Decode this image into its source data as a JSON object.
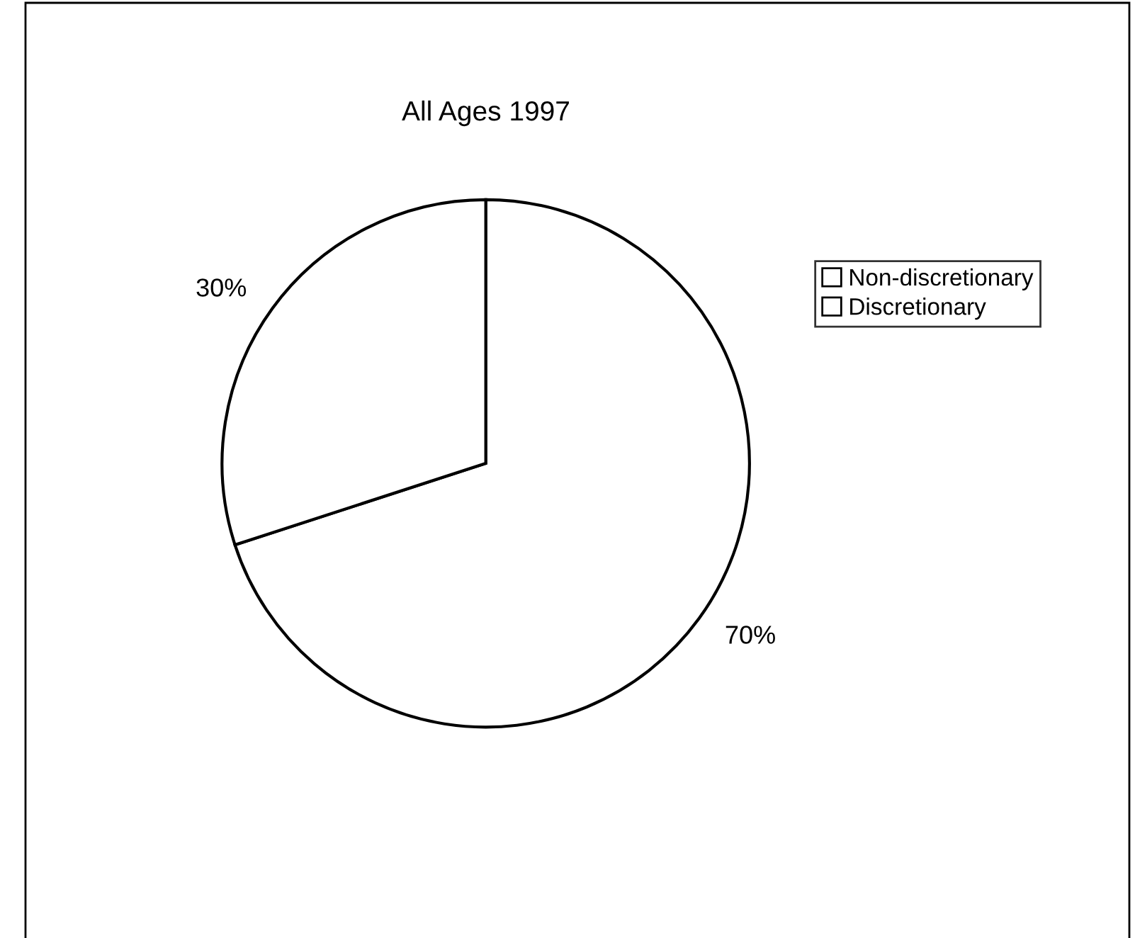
{
  "chart_data": {
    "type": "pie",
    "title": "All Ages 1997",
    "categories": [
      "Non-discretionary",
      "Discretionary"
    ],
    "values": [
      70,
      30
    ],
    "value_labels": [
      "70%",
      "30%"
    ],
    "colors": [
      "#ffffff",
      "#ffffff"
    ],
    "legend": "right"
  }
}
